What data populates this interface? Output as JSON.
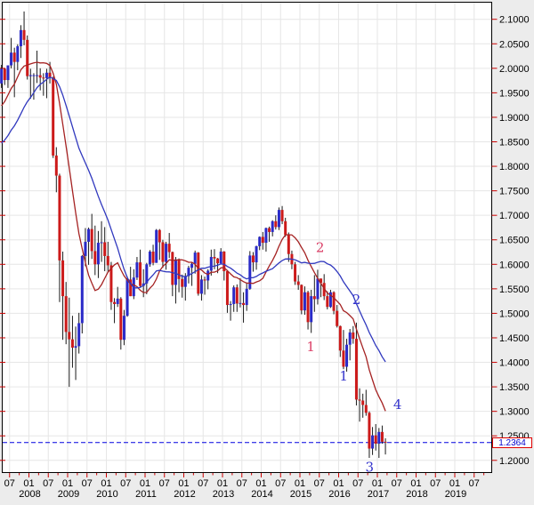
{
  "price_label": {
    "value": "1.2364"
  },
  "chart_data": {
    "type": "candlestick",
    "timeframe": "monthly",
    "last_price": 1.2364,
    "last_price_label": "1.2364",
    "y_axis": {
      "max": 2.1,
      "min": 1.2,
      "step": 0.05,
      "side": "right",
      "labels": [
        "2.1000",
        "2.0500",
        "2.0000",
        "1.9500",
        "1.9000",
        "1.8500",
        "1.8000",
        "1.7500",
        "1.7000",
        "1.6500",
        "1.6000",
        "1.5500",
        "1.5000",
        "1.4500",
        "1.4000",
        "1.3500",
        "1.3000",
        "1.2500",
        "1.2000"
      ]
    },
    "x_axis": {
      "month_ticks": [
        {
          "t": 2007.5,
          "label": "07"
        },
        {
          "t": 2008.0,
          "label": "01"
        },
        {
          "t": 2008.5,
          "label": "07"
        },
        {
          "t": 2009.0,
          "label": "01"
        },
        {
          "t": 2009.5,
          "label": "07"
        },
        {
          "t": 2010.0,
          "label": "01"
        },
        {
          "t": 2010.5,
          "label": "07"
        },
        {
          "t": 2011.0,
          "label": "01"
        },
        {
          "t": 2011.5,
          "label": "07"
        },
        {
          "t": 2012.0,
          "label": "01"
        },
        {
          "t": 2012.5,
          "label": "07"
        },
        {
          "t": 2013.0,
          "label": "01"
        },
        {
          "t": 2013.5,
          "label": "07"
        },
        {
          "t": 2014.0,
          "label": "01"
        },
        {
          "t": 2014.5,
          "label": "07"
        },
        {
          "t": 2015.0,
          "label": "01"
        },
        {
          "t": 2015.5,
          "label": "07"
        },
        {
          "t": 2016.0,
          "label": "01"
        },
        {
          "t": 2016.5,
          "label": "07"
        },
        {
          "t": 2017.0,
          "label": "01"
        },
        {
          "t": 2017.5,
          "label": "07"
        },
        {
          "t": 2018.0,
          "label": "01"
        },
        {
          "t": 2018.5,
          "label": "07"
        },
        {
          "t": 2019.0,
          "label": "01"
        },
        {
          "t": 2019.5,
          "label": "07"
        }
      ],
      "year_labels": [
        {
          "t": 2008,
          "label": "2008"
        },
        {
          "t": 2009,
          "label": "2009"
        },
        {
          "t": 2010,
          "label": "2010"
        },
        {
          "t": 2011,
          "label": "2011"
        },
        {
          "t": 2012,
          "label": "2012"
        },
        {
          "t": 2013,
          "label": "2013"
        },
        {
          "t": 2014,
          "label": "2014"
        },
        {
          "t": 2015,
          "label": "2015"
        },
        {
          "t": 2016,
          "label": "2016"
        },
        {
          "t": 2017,
          "label": "2017"
        },
        {
          "t": 2018,
          "label": "2018"
        },
        {
          "t": 2019,
          "label": "2019"
        }
      ]
    },
    "candles": {
      "start_month": "2007-04",
      "columns": [
        "open",
        "high",
        "low",
        "close"
      ],
      "ohlc": [
        [
          1.969,
          2.007,
          1.96,
          1.999
        ],
        [
          1.999,
          2.0,
          1.966,
          1.976
        ],
        [
          1.976,
          2.006,
          1.96,
          2.006
        ],
        [
          2.006,
          2.062,
          2.0,
          2.032
        ],
        [
          2.032,
          2.042,
          1.941,
          2.013
        ],
        [
          2.013,
          2.049,
          1.996,
          2.045
        ],
        [
          2.045,
          2.088,
          2.021,
          2.078
        ],
        [
          2.078,
          2.116,
          2.047,
          2.058
        ],
        [
          2.058,
          2.067,
          1.977,
          1.984
        ],
        [
          1.984,
          1.999,
          1.938,
          1.986
        ],
        [
          1.986,
          1.99,
          1.936,
          1.986
        ],
        [
          1.986,
          2.036,
          1.97,
          1.986
        ],
        [
          1.986,
          2.0,
          1.955,
          1.981
        ],
        [
          1.981,
          1.99,
          1.944,
          1.98
        ],
        [
          1.98,
          1.999,
          1.939,
          1.991
        ],
        [
          1.991,
          2.013,
          1.969,
          1.981
        ],
        [
          1.981,
          1.983,
          1.817,
          1.822
        ],
        [
          1.822,
          1.839,
          1.747,
          1.781
        ],
        [
          1.781,
          1.785,
          1.523,
          1.608
        ],
        [
          1.608,
          1.626,
          1.446,
          1.535
        ],
        [
          1.535,
          1.564,
          1.437,
          1.462
        ],
        [
          1.462,
          1.532,
          1.35,
          1.447
        ],
        [
          1.447,
          1.495,
          1.389,
          1.43
        ],
        [
          1.43,
          1.473,
          1.364,
          1.433
        ],
        [
          1.433,
          1.501,
          1.418,
          1.48
        ],
        [
          1.48,
          1.619,
          1.459,
          1.617
        ],
        [
          1.617,
          1.674,
          1.596,
          1.646
        ],
        [
          1.646,
          1.675,
          1.599,
          1.672
        ],
        [
          1.672,
          1.703,
          1.611,
          1.627
        ],
        [
          1.627,
          1.679,
          1.578,
          1.6
        ],
        [
          1.6,
          1.668,
          1.572,
          1.644
        ],
        [
          1.644,
          1.688,
          1.605,
          1.645
        ],
        [
          1.645,
          1.676,
          1.586,
          1.617
        ],
        [
          1.617,
          1.646,
          1.583,
          1.598
        ],
        [
          1.598,
          1.605,
          1.507,
          1.523
        ],
        [
          1.523,
          1.531,
          1.48,
          1.519
        ],
        [
          1.519,
          1.554,
          1.513,
          1.53
        ],
        [
          1.53,
          1.533,
          1.426,
          1.446
        ],
        [
          1.446,
          1.507,
          1.435,
          1.495
        ],
        [
          1.495,
          1.575,
          1.493,
          1.569
        ],
        [
          1.569,
          1.595,
          1.535,
          1.535
        ],
        [
          1.535,
          1.59,
          1.529,
          1.573
        ],
        [
          1.573,
          1.615,
          1.568,
          1.604
        ],
        [
          1.604,
          1.63,
          1.554,
          1.556
        ],
        [
          1.556,
          1.59,
          1.533,
          1.561
        ],
        [
          1.561,
          1.603,
          1.539,
          1.6
        ],
        [
          1.6,
          1.629,
          1.595,
          1.626
        ],
        [
          1.626,
          1.64,
          1.598,
          1.603
        ],
        [
          1.603,
          1.672,
          1.603,
          1.67
        ],
        [
          1.67,
          1.672,
          1.609,
          1.645
        ],
        [
          1.645,
          1.65,
          1.593,
          1.605
        ],
        [
          1.605,
          1.646,
          1.589,
          1.642
        ],
        [
          1.642,
          1.664,
          1.613,
          1.625
        ],
        [
          1.625,
          1.626,
          1.535,
          1.558
        ],
        [
          1.558,
          1.615,
          1.52,
          1.61
        ],
        [
          1.61,
          1.612,
          1.543,
          1.57
        ],
        [
          1.57,
          1.579,
          1.532,
          1.554
        ],
        [
          1.554,
          1.582,
          1.526,
          1.576
        ],
        [
          1.576,
          1.597,
          1.561,
          1.593
        ],
        [
          1.593,
          1.604,
          1.556,
          1.601
        ],
        [
          1.601,
          1.628,
          1.581,
          1.624
        ],
        [
          1.624,
          1.625,
          1.536,
          1.54
        ],
        [
          1.54,
          1.578,
          1.526,
          1.569
        ],
        [
          1.569,
          1.575,
          1.538,
          1.567
        ],
        [
          1.567,
          1.59,
          1.549,
          1.587
        ],
        [
          1.587,
          1.63,
          1.577,
          1.615
        ],
        [
          1.615,
          1.631,
          1.59,
          1.612
        ],
        [
          1.612,
          1.613,
          1.582,
          1.602
        ],
        [
          1.602,
          1.633,
          1.601,
          1.626
        ],
        [
          1.626,
          1.627,
          1.567,
          1.586
        ],
        [
          1.586,
          1.588,
          1.501,
          1.517
        ],
        [
          1.517,
          1.525,
          1.485,
          1.519
        ],
        [
          1.519,
          1.557,
          1.503,
          1.553
        ],
        [
          1.553,
          1.559,
          1.503,
          1.52
        ],
        [
          1.52,
          1.572,
          1.512,
          1.521
        ],
        [
          1.521,
          1.543,
          1.481,
          1.517
        ],
        [
          1.517,
          1.563,
          1.505,
          1.55
        ],
        [
          1.55,
          1.627,
          1.548,
          1.618
        ],
        [
          1.618,
          1.625,
          1.585,
          1.604
        ],
        [
          1.604,
          1.638,
          1.589,
          1.637
        ],
        [
          1.637,
          1.657,
          1.629,
          1.656
        ],
        [
          1.656,
          1.666,
          1.63,
          1.644
        ],
        [
          1.644,
          1.675,
          1.626,
          1.674
        ],
        [
          1.674,
          1.677,
          1.646,
          1.666
        ],
        [
          1.666,
          1.69,
          1.657,
          1.688
        ],
        [
          1.688,
          1.7,
          1.671,
          1.676
        ],
        [
          1.676,
          1.716,
          1.67,
          1.711
        ],
        [
          1.711,
          1.719,
          1.682,
          1.688
        ],
        [
          1.688,
          1.695,
          1.656,
          1.66
        ],
        [
          1.66,
          1.665,
          1.605,
          1.621
        ],
        [
          1.621,
          1.628,
          1.59,
          1.6
        ],
        [
          1.6,
          1.605,
          1.558,
          1.565
        ],
        [
          1.565,
          1.578,
          1.548,
          1.558
        ],
        [
          1.558,
          1.559,
          1.498,
          1.506
        ],
        [
          1.506,
          1.555,
          1.497,
          1.543
        ],
        [
          1.543,
          1.546,
          1.467,
          1.482
        ],
        [
          1.482,
          1.548,
          1.46,
          1.535
        ],
        [
          1.535,
          1.578,
          1.503,
          1.529
        ],
        [
          1.529,
          1.589,
          1.518,
          1.571
        ],
        [
          1.571,
          1.571,
          1.533,
          1.562
        ],
        [
          1.562,
          1.58,
          1.527,
          1.535
        ],
        [
          1.535,
          1.545,
          1.508,
          1.513
        ],
        [
          1.513,
          1.548,
          1.511,
          1.543
        ],
        [
          1.543,
          1.545,
          1.498,
          1.505
        ],
        [
          1.505,
          1.517,
          1.471,
          1.474
        ],
        [
          1.474,
          1.475,
          1.411,
          1.424
        ],
        [
          1.424,
          1.466,
          1.386,
          1.391
        ],
        [
          1.391,
          1.448,
          1.381,
          1.436
        ],
        [
          1.436,
          1.468,
          1.404,
          1.461
        ],
        [
          1.461,
          1.474,
          1.438,
          1.448
        ],
        [
          1.448,
          1.481,
          1.312,
          1.324
        ],
        [
          1.324,
          1.347,
          1.279,
          1.322
        ],
        [
          1.322,
          1.336,
          1.287,
          1.313
        ],
        [
          1.313,
          1.344,
          1.291,
          1.297
        ],
        [
          1.297,
          1.3,
          1.205,
          1.224
        ],
        [
          1.224,
          1.268,
          1.211,
          1.251
        ],
        [
          1.251,
          1.274,
          1.22,
          1.234
        ],
        [
          1.234,
          1.266,
          1.205,
          1.258
        ],
        [
          1.258,
          1.271,
          1.234,
          1.238
        ],
        [
          1.238,
          1.245,
          1.212,
          1.2364
        ]
      ]
    },
    "pre_closes": [
      1.786,
      1.82,
      1.791,
      1.758,
      1.805,
      1.77,
      1.767,
      1.728,
      1.719,
      1.779,
      1.751,
      1.736,
      1.822,
      1.873,
      1.849,
      1.869,
      1.903,
      1.872,
      1.905,
      1.965,
      1.958,
      1.959,
      1.962,
      1.969
    ],
    "moving_averages": [
      {
        "name": "fast-ma",
        "period": 12,
        "color": "#A52222"
      },
      {
        "name": "slow-ma",
        "period": 24,
        "color": "#3038BE"
      }
    ],
    "annotations": [
      {
        "text": "1",
        "color": "#DB3E66",
        "t": 2015.28,
        "price": 1.432
      },
      {
        "text": "2",
        "color": "#DB3E66",
        "t": 2015.52,
        "price": 1.634
      },
      {
        "text": "1",
        "color": "#3333CC",
        "t": 2016.13,
        "price": 1.372
      },
      {
        "text": "2",
        "color": "#3333CC",
        "t": 2016.46,
        "price": 1.528
      },
      {
        "text": "3",
        "color": "#3333CC",
        "t": 2016.8,
        "price": 1.186
      },
      {
        "text": "4",
        "color": "#3333CC",
        "t": 2017.52,
        "price": 1.314
      }
    ],
    "colors": {
      "background": "#ECECEC",
      "plot_bg": "#FFFFFF",
      "grid": "#E6E6E6",
      "border": "#000000",
      "tick": "#CC0000",
      "axis_text": "#000000",
      "up_candle": "#2A2AC8",
      "down_candle": "#CC1A1A",
      "wick": "#1A1A1A",
      "dashed_line": "#0000E0",
      "price_label_text": "#0000CC",
      "price_label_border": "#E00000"
    }
  }
}
